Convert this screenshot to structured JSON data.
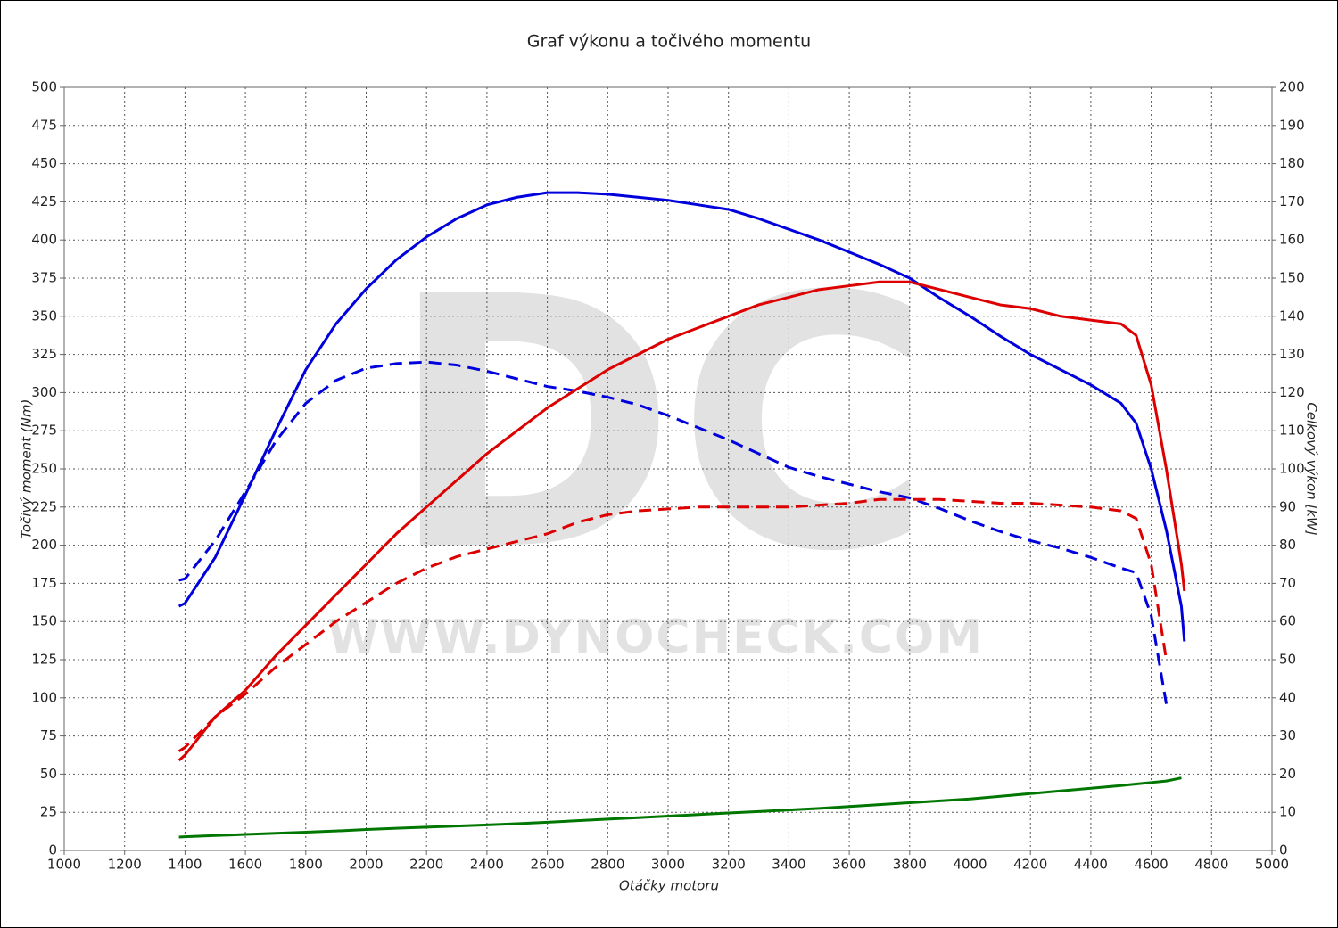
{
  "chart_data": {
    "type": "line",
    "title": "Graf výkonu a točivého momentu",
    "x_label": "Otáčky motoru",
    "y_label": "Točivý moment (Nm)",
    "y2_label": "Celkový výkon [kW]",
    "watermark": "DC",
    "watermark_url": "WWW.DYNOCHECK.COM",
    "grid": true,
    "xlim": [
      1000,
      5000
    ],
    "xticks": [
      1000,
      1200,
      1400,
      1600,
      1800,
      2000,
      2200,
      2400,
      2600,
      2800,
      3000,
      3200,
      3400,
      3600,
      3800,
      4000,
      4200,
      4400,
      4600,
      4800,
      5000
    ],
    "ylim": [
      0,
      500
    ],
    "yticks": [
      0,
      25,
      50,
      75,
      100,
      125,
      150,
      175,
      200,
      225,
      250,
      275,
      300,
      325,
      350,
      375,
      400,
      425,
      450,
      475,
      500
    ],
    "y2lim": [
      0,
      200
    ],
    "y2ticks": [
      0,
      10,
      20,
      30,
      40,
      50,
      60,
      70,
      80,
      90,
      100,
      110,
      120,
      130,
      140,
      150,
      160,
      170,
      180,
      190,
      200
    ],
    "x": [
      1380,
      1400,
      1500,
      1600,
      1700,
      1800,
      1900,
      2000,
      2100,
      2200,
      2300,
      2400,
      2500,
      2600,
      2700,
      2800,
      2900,
      3000,
      3100,
      3200,
      3300,
      3400,
      3500,
      3600,
      3700,
      3800,
      3900,
      4000,
      4100,
      4200,
      4300,
      4400,
      4500,
      4550,
      4600,
      4650,
      4700,
      4710
    ],
    "series": [
      {
        "color": "#0000dd",
        "style": "solid",
        "axis": "y",
        "values": [
          160,
          162,
          192,
          233,
          275,
          315,
          345,
          368,
          387,
          402,
          414,
          423,
          428,
          431,
          431,
          430,
          428,
          426,
          423,
          420,
          414,
          407,
          400,
          392,
          384,
          375,
          362,
          350,
          337,
          325,
          315,
          305,
          293,
          280,
          250,
          210,
          160,
          137
        ]
      },
      {
        "color": "#0000dd",
        "style": "dashed",
        "axis": "y",
        "values": [
          177,
          178,
          203,
          235,
          268,
          293,
          308,
          316,
          319,
          320,
          318,
          314,
          309,
          304,
          301,
          297,
          292,
          285,
          277,
          269,
          260,
          251,
          245,
          240,
          235,
          231,
          224,
          216,
          209,
          203,
          198,
          192,
          185,
          182,
          154,
          96,
          null,
          null
        ]
      },
      {
        "color": "#dd0000",
        "style": "solid",
        "axis": "y2",
        "values": [
          23.6,
          25,
          35,
          42,
          51,
          59,
          67,
          75,
          83,
          90,
          97,
          104,
          110,
          116,
          121,
          126,
          130,
          134,
          137,
          140,
          143,
          145,
          147,
          148,
          149,
          149,
          147,
          145,
          143,
          142,
          140,
          139,
          138,
          135,
          122,
          100,
          75,
          68
        ]
      },
      {
        "color": "#dd0000",
        "style": "dashed",
        "axis": "y2",
        "values": [
          26,
          27,
          35,
          41,
          48,
          54,
          60,
          65,
          70,
          74,
          77,
          79,
          81,
          83,
          86,
          88,
          89,
          89.5,
          90,
          90,
          90,
          90,
          90.5,
          91,
          92,
          92,
          92,
          91.5,
          91,
          91,
          90.5,
          90,
          89,
          87,
          75,
          50,
          null,
          null
        ]
      },
      {
        "color": "#007700",
        "style": "solid",
        "axis": "y2",
        "values": [
          3.5,
          3.6,
          3.9,
          4.2,
          4.5,
          4.8,
          5.1,
          5.5,
          5.8,
          6.1,
          6.4,
          6.7,
          7,
          7.4,
          7.8,
          8.2,
          8.6,
          9,
          9.4,
          9.8,
          10.2,
          10.6,
          11,
          11.5,
          12,
          12.5,
          13,
          13.5,
          14.2,
          14.9,
          15.6,
          16.3,
          17,
          17.4,
          17.8,
          18.2,
          19,
          null
        ]
      }
    ]
  }
}
